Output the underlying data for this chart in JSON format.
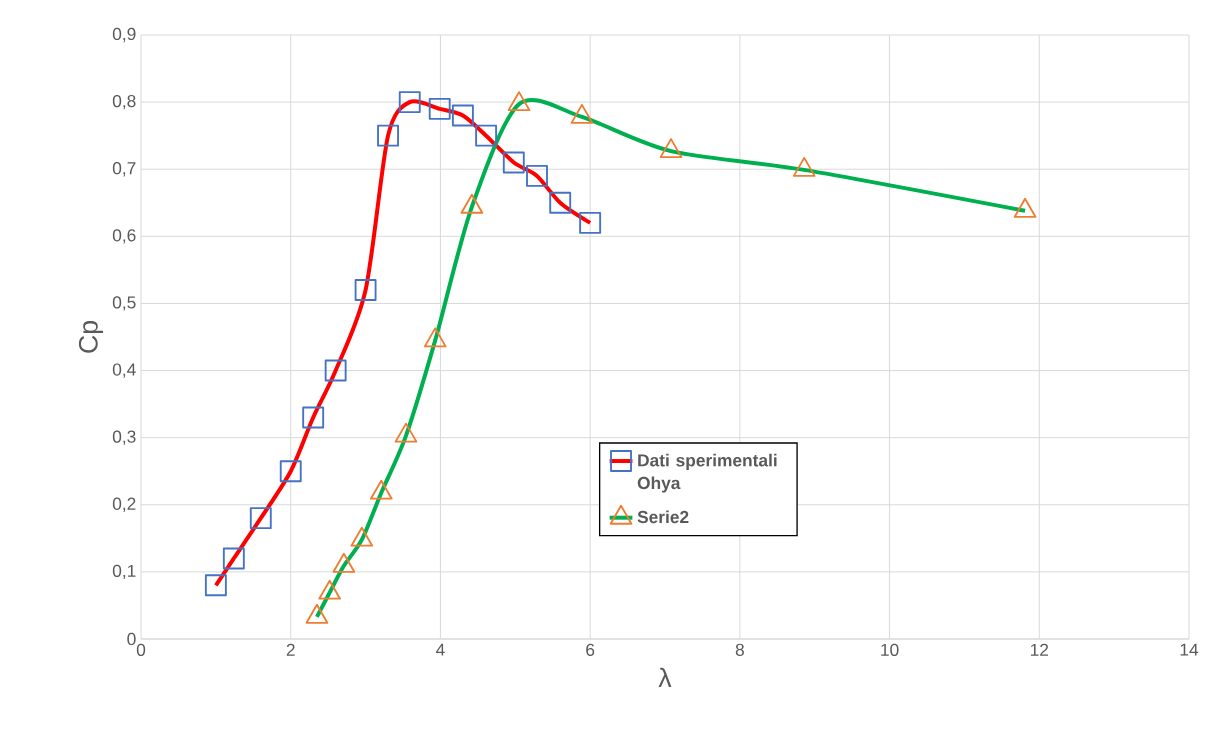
{
  "chart_data": {
    "type": "line",
    "xlabel": "λ",
    "ylabel": "Cp",
    "xlim": [
      0,
      14
    ],
    "xticks": [
      0,
      2,
      4,
      6,
      8,
      10,
      12,
      14
    ],
    "ylim": [
      0,
      0.9
    ],
    "yticks": [
      {
        "value": 0,
        "label": "0"
      },
      {
        "value": 0.1,
        "label": "0,1"
      },
      {
        "value": 0.2,
        "label": "0,2"
      },
      {
        "value": 0.3,
        "label": "0,3"
      },
      {
        "value": 0.4,
        "label": "0,4"
      },
      {
        "value": 0.5,
        "label": "0,5"
      },
      {
        "value": 0.6,
        "label": "0,6"
      },
      {
        "value": 0.7,
        "label": "0,7"
      },
      {
        "value": 0.8,
        "label": "0,8"
      },
      {
        "value": 0.9,
        "label": "0,9"
      }
    ],
    "grid": true,
    "legend": "center",
    "series": [
      {
        "name": "Dati sperimentali Ohya",
        "color": "#ff0000",
        "marker": "square",
        "x": [
          1.0,
          1.24,
          1.6,
          2.0,
          2.3,
          2.6,
          3.0,
          3.3,
          3.59,
          3.99,
          4.3,
          4.61,
          4.98,
          5.29,
          5.6,
          6.0
        ],
        "values": [
          0.08,
          0.12,
          0.18,
          0.25,
          0.33,
          0.4,
          0.52,
          0.75,
          0.8,
          0.79,
          0.78,
          0.75,
          0.71,
          0.69,
          0.65,
          0.62
        ]
      },
      {
        "name": "Serie2",
        "color": "#00b050",
        "marker": "triangle",
        "x": [
          2.35,
          2.52,
          2.71,
          2.95,
          3.21,
          3.54,
          3.93,
          4.42,
          5.05,
          5.89,
          7.08,
          8.86,
          11.81
        ],
        "values": [
          0.033,
          0.069,
          0.109,
          0.148,
          0.218,
          0.303,
          0.445,
          0.644,
          0.797,
          0.778,
          0.727,
          0.699,
          0.638
        ]
      }
    ]
  }
}
